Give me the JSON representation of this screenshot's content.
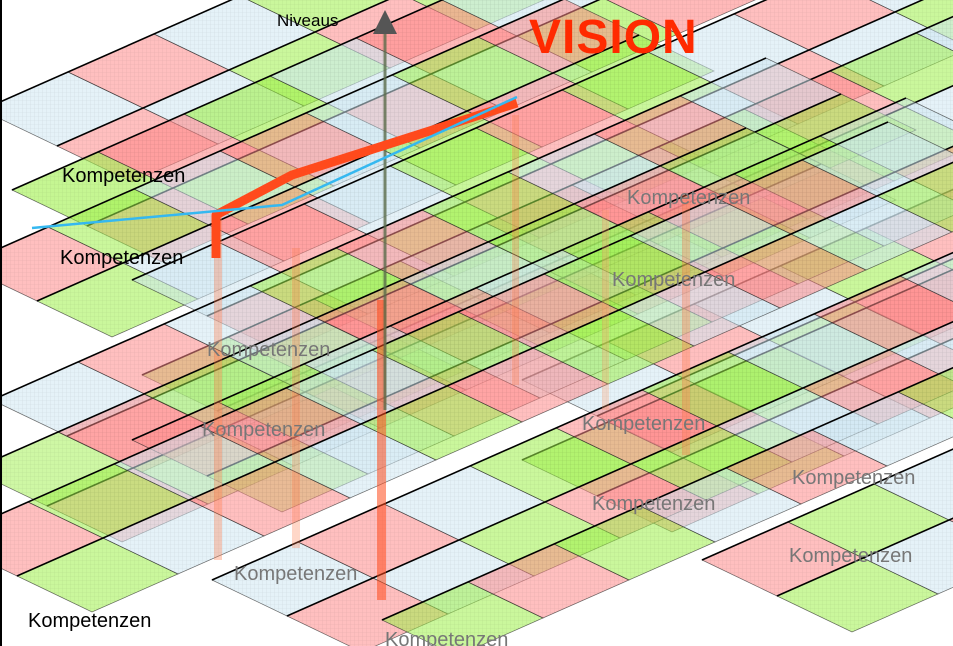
{
  "title": "VISION",
  "axis_label": "Niveaus",
  "label_text": "Kompetenzen",
  "colors": {
    "title": "#ff2a00",
    "path": "#ff4a1c",
    "blue": "#35b8f0",
    "green": "#9ef04a",
    "red": "#ff8a8a",
    "lightblue": "#cfe8f2",
    "axis": "#555555"
  }
}
